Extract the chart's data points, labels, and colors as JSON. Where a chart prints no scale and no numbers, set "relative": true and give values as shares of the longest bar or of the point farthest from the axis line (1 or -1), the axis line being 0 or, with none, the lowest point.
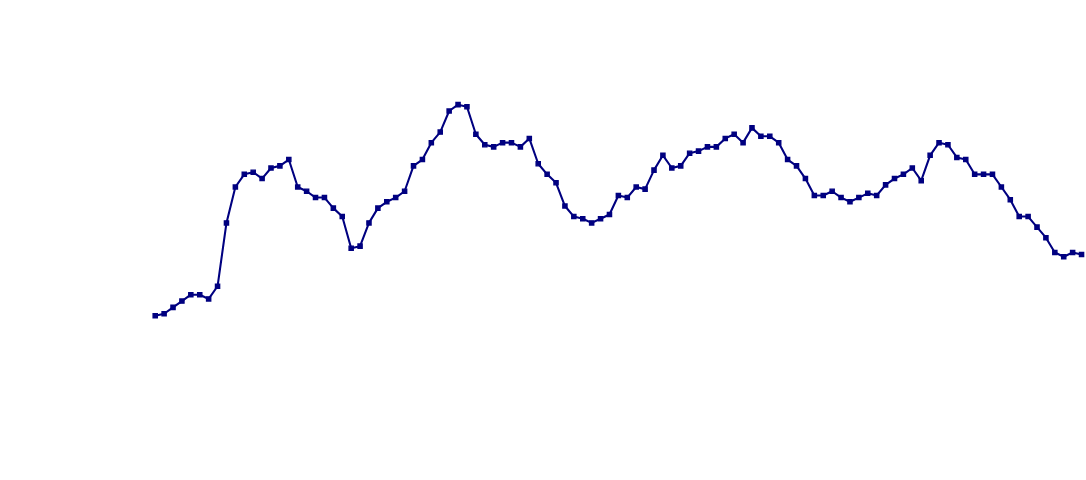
{
  "chart_data": {
    "type": "line",
    "relative": true,
    "tick_labels": false,
    "marker": "square",
    "line_style": "solid",
    "categories": [
      null,
      null,
      null,
      null,
      null,
      null,
      null,
      null,
      null,
      null,
      null,
      null,
      null,
      null,
      null,
      null,
      null,
      null,
      null,
      null,
      null,
      null,
      null,
      null,
      null,
      null,
      null,
      null,
      null,
      null,
      null,
      null,
      null,
      null,
      null,
      null,
      null,
      null,
      null,
      null,
      null,
      null,
      null,
      null,
      null,
      null,
      null,
      null,
      null,
      null,
      null,
      null,
      null,
      null,
      null,
      null,
      null,
      null,
      null,
      null,
      null,
      null,
      null,
      null,
      null,
      null,
      null,
      null,
      null,
      null,
      null,
      null,
      null,
      null,
      null,
      null,
      null,
      null,
      null,
      null,
      null,
      null,
      null,
      null,
      null,
      null,
      null,
      null,
      null,
      null,
      null,
      null,
      null,
      null,
      null,
      null,
      null,
      null,
      null,
      null,
      null,
      null,
      null,
      null,
      null,
      null,
      null,
      null,
      null,
      null,
      null,
      null,
      null,
      null
    ],
    "series": [
      {
        "color": "#000080",
        "values": [
          null,
          null,
          null,
          null,
          null,
          null,
          null,
          null,
          null,
          0.0,
          0.01,
          0.04,
          0.07,
          0.1,
          0.1,
          0.08,
          0.14,
          0.44,
          0.61,
          0.67,
          0.68,
          0.65,
          0.7,
          0.71,
          0.74,
          0.61,
          0.59,
          0.56,
          0.56,
          0.51,
          0.47,
          0.32,
          0.33,
          0.44,
          0.51,
          0.54,
          0.56,
          0.59,
          0.71,
          0.74,
          0.82,
          0.87,
          0.97,
          1.0,
          0.99,
          0.86,
          0.81,
          0.8,
          0.82,
          0.82,
          0.8,
          0.84,
          0.72,
          0.67,
          0.63,
          0.52,
          0.47,
          0.46,
          0.44,
          0.46,
          0.48,
          0.57,
          0.56,
          0.61,
          0.6,
          0.69,
          0.76,
          0.7,
          0.71,
          0.77,
          0.78,
          0.8,
          0.8,
          0.84,
          0.86,
          0.82,
          0.89,
          0.85,
          0.85,
          0.82,
          0.74,
          0.71,
          0.65,
          0.57,
          0.57,
          0.59,
          0.56,
          0.54,
          0.56,
          0.58,
          0.57,
          0.62,
          0.65,
          0.67,
          0.7,
          0.64,
          0.76,
          0.82,
          0.81,
          0.75,
          0.74,
          0.67,
          0.67,
          0.67,
          0.61,
          0.55,
          0.47,
          0.47,
          0.42,
          0.37,
          0.3,
          0.28,
          0.3,
          0.29
        ]
      }
    ]
  }
}
